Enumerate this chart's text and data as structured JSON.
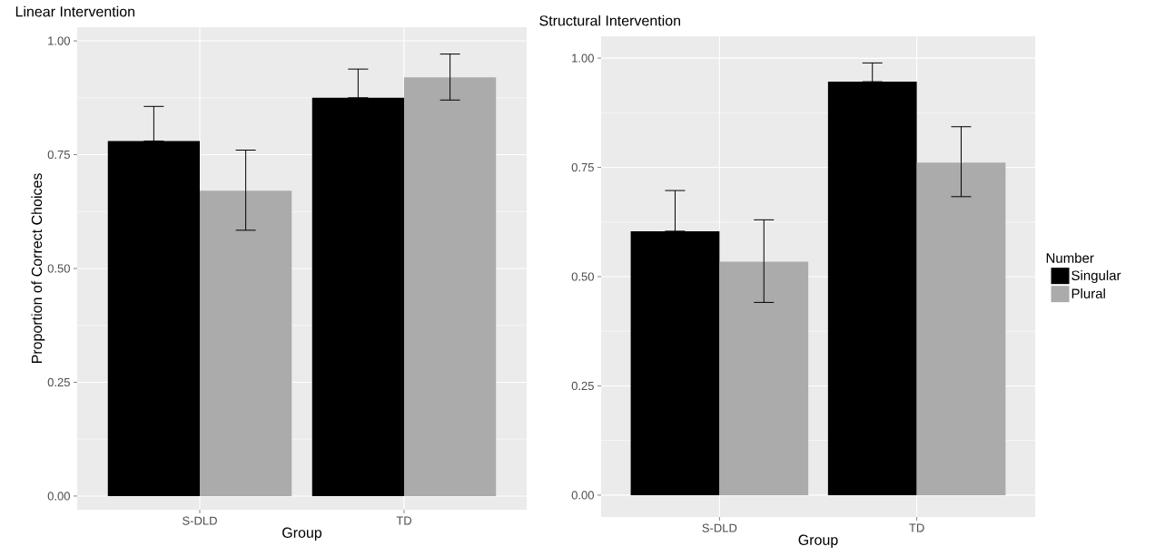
{
  "chart_data": [
    {
      "type": "bar",
      "title": "Linear Intervention",
      "xlabel": "Group",
      "ylabel": "Proportion of Correct Choices",
      "categories": [
        "S-DLD",
        "TD"
      ],
      "series": [
        {
          "color": "#000000",
          "values": [
            0.78,
            0.875
          ],
          "errors": [
            [
              0.78,
              0.856
            ],
            [
              0.875,
              0.938
            ]
          ]
        },
        {
          "color": "#ababab",
          "values": [
            0.671,
            0.92
          ],
          "errors": [
            [
              0.584,
              0.76
            ],
            [
              0.87,
              0.971
            ]
          ]
        }
      ],
      "ylim": [
        -0.03,
        1.03
      ],
      "yticks": [
        {
          "value": 0,
          "label": "0.00"
        },
        {
          "value": 0.25,
          "label": "0.25"
        },
        {
          "value": 0.5,
          "label": "0.50"
        },
        {
          "value": 0.75,
          "label": "0.75"
        },
        {
          "value": 1,
          "label": "1.00"
        }
      ],
      "grid": true
    },
    {
      "type": "bar",
      "title": "Structural Intervention",
      "xlabel": "Group",
      "categories": [
        "S-DLD",
        "TD"
      ],
      "series": [
        {
          "name": "Singular",
          "color": "#000000",
          "values": [
            0.604,
            0.946
          ],
          "errors": [
            [
              0.604,
              0.697
            ],
            [
              0.946,
              0.989
            ]
          ]
        },
        {
          "name": "Plural",
          "color": "#ababab",
          "values": [
            0.534,
            0.761
          ],
          "errors": [
            [
              0.441,
              0.63
            ],
            [
              0.683,
              0.843
            ]
          ]
        }
      ],
      "ylim": [
        -0.05,
        1.05
      ],
      "yticks": [
        {
          "value": 0,
          "label": "0.00"
        },
        {
          "value": 0.25,
          "label": "0.25"
        },
        {
          "value": 0.5,
          "label": "0.50"
        },
        {
          "value": 0.75,
          "label": "0.75"
        },
        {
          "value": 1,
          "label": "1.00"
        }
      ],
      "grid": true,
      "legend": "right",
      "legend_title": "Number"
    }
  ]
}
